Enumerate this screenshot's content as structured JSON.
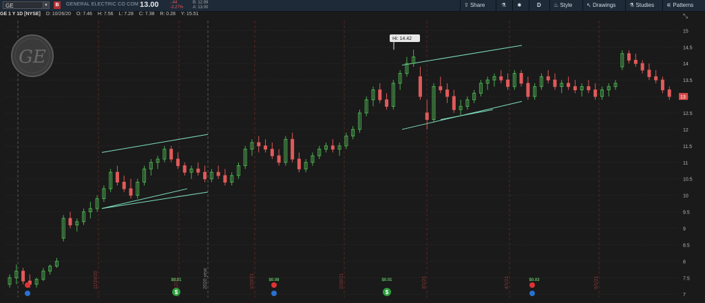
{
  "toolbar": {
    "symbol": "GE",
    "alert_label": "B",
    "company": "GENERAL ELECTRIC CO COM",
    "last_price": "13.00",
    "change": "-.44",
    "change_pct": "-3.27%",
    "bid": "B: 12.99",
    "ask": "A: 13.00",
    "share_label": "Share",
    "period_label": "D",
    "style_label": "Style",
    "drawings_label": "Drawings",
    "studies_label": "Studies",
    "patterns_label": "Patterns"
  },
  "infobar": {
    "title": "GE 1 Y 1D [NYSE]",
    "date": "D: 10/26/20",
    "open": "O: 7.46",
    "high": "H: 7.56",
    "low": "L: 7.28",
    "close": "C: 7.38",
    "range": "R: 0.28",
    "y": "Y: 15.51"
  },
  "colors": {
    "up": "#4caf50",
    "down": "#e05a5a",
    "trendline": "#7fe0c0",
    "background": "#1a1a1a",
    "toolbar": "#1e2a38"
  },
  "chart_data": {
    "type": "candlestick",
    "yticks": [
      "7",
      "7.5",
      "8",
      "8.5",
      "9",
      "9.5",
      "10",
      "10.5",
      "11",
      "11.5",
      "12",
      "12.5",
      "13",
      "13.5",
      "14",
      "14.5",
      "15"
    ],
    "ylim": [
      6.9,
      15.3
    ],
    "last_price_tag": "13",
    "hi_label": "Hi: 14.42",
    "x_labels": [
      "11/29/20",
      "12/31",
      "2020 year",
      "1/29/21",
      "2/26/21",
      "3/1/21",
      "4/1/21",
      "5/1/21"
    ],
    "dividends": [
      "$0.01",
      "$0.08",
      "$0.01",
      "$0.03"
    ],
    "candles": [
      [
        7.3,
        7.6,
        7.2,
        7.5
      ],
      [
        7.5,
        7.9,
        7.3,
        7.7
      ],
      [
        7.7,
        7.8,
        7.3,
        7.4
      ],
      [
        7.4,
        7.6,
        7.2,
        7.3
      ],
      [
        7.3,
        7.5,
        7.2,
        7.45
      ],
      [
        7.45,
        7.8,
        7.4,
        7.7
      ],
      [
        7.7,
        7.9,
        7.6,
        7.85
      ],
      [
        7.85,
        8.1,
        7.8,
        8.0
      ],
      [
        8.7,
        9.4,
        8.6,
        9.3
      ],
      [
        9.3,
        9.5,
        9.0,
        9.1
      ],
      [
        9.1,
        9.3,
        8.9,
        9.2
      ],
      [
        9.2,
        9.6,
        9.1,
        9.5
      ],
      [
        9.5,
        9.8,
        9.3,
        9.6
      ],
      [
        9.6,
        10.0,
        9.5,
        9.9
      ],
      [
        9.9,
        10.3,
        9.8,
        10.2
      ],
      [
        10.2,
        10.8,
        10.1,
        10.7
      ],
      [
        10.7,
        10.9,
        10.3,
        10.4
      ],
      [
        10.4,
        10.6,
        10.1,
        10.2
      ],
      [
        10.2,
        10.5,
        9.9,
        10.0
      ],
      [
        10.0,
        10.5,
        9.9,
        10.4
      ],
      [
        10.4,
        10.9,
        10.3,
        10.8
      ],
      [
        10.8,
        11.1,
        10.6,
        11.0
      ],
      [
        11.0,
        11.2,
        10.8,
        11.1
      ],
      [
        11.1,
        11.5,
        11.0,
        11.4
      ],
      [
        11.4,
        11.5,
        11.0,
        11.1
      ],
      [
        11.1,
        11.3,
        10.8,
        10.9
      ],
      [
        10.9,
        11.0,
        10.6,
        10.7
      ],
      [
        10.7,
        10.9,
        10.5,
        10.8
      ],
      [
        10.8,
        11.0,
        10.6,
        10.7
      ],
      [
        10.7,
        10.9,
        10.4,
        10.5
      ],
      [
        10.5,
        10.8,
        10.4,
        10.7
      ],
      [
        10.7,
        10.9,
        10.5,
        10.6
      ],
      [
        10.6,
        10.8,
        10.3,
        10.4
      ],
      [
        10.4,
        10.7,
        10.3,
        10.6
      ],
      [
        10.6,
        11.0,
        10.5,
        10.9
      ],
      [
        10.9,
        11.5,
        10.8,
        11.4
      ],
      [
        11.4,
        11.7,
        11.2,
        11.6
      ],
      [
        11.6,
        11.8,
        11.3,
        11.5
      ],
      [
        11.5,
        11.7,
        11.3,
        11.4
      ],
      [
        11.4,
        11.6,
        11.1,
        11.2
      ],
      [
        11.2,
        11.4,
        10.9,
        11.0
      ],
      [
        11.0,
        11.8,
        10.9,
        11.7
      ],
      [
        11.7,
        11.9,
        11.0,
        11.1
      ],
      [
        11.1,
        11.3,
        10.7,
        10.8
      ],
      [
        10.8,
        11.1,
        10.7,
        11.0
      ],
      [
        11.0,
        11.3,
        10.9,
        11.2
      ],
      [
        11.2,
        11.5,
        11.1,
        11.4
      ],
      [
        11.4,
        11.6,
        11.3,
        11.5
      ],
      [
        11.5,
        11.7,
        11.3,
        11.4
      ],
      [
        11.4,
        11.6,
        11.2,
        11.5
      ],
      [
        11.5,
        11.9,
        11.4,
        11.8
      ],
      [
        11.8,
        12.1,
        11.7,
        12.0
      ],
      [
        12.0,
        12.6,
        11.9,
        12.5
      ],
      [
        12.5,
        13.0,
        12.4,
        12.9
      ],
      [
        12.9,
        13.3,
        12.7,
        13.2
      ],
      [
        13.2,
        13.4,
        12.8,
        12.9
      ],
      [
        12.9,
        13.1,
        12.6,
        12.7
      ],
      [
        12.7,
        13.5,
        12.6,
        13.4
      ],
      [
        13.4,
        13.8,
        13.2,
        13.7
      ],
      [
        13.7,
        14.2,
        13.6,
        14.0
      ],
      [
        14.0,
        14.42,
        13.9,
        14.2
      ],
      [
        13.6,
        13.9,
        12.9,
        13.0
      ],
      [
        12.5,
        12.9,
        12.0,
        12.3
      ],
      [
        12.3,
        13.4,
        12.2,
        13.3
      ],
      [
        13.3,
        13.6,
        13.1,
        13.2
      ],
      [
        13.2,
        13.4,
        12.8,
        13.0
      ],
      [
        13.0,
        13.2,
        12.5,
        12.6
      ],
      [
        12.6,
        12.9,
        12.4,
        12.7
      ],
      [
        12.7,
        13.0,
        12.6,
        12.9
      ],
      [
        12.9,
        13.2,
        12.8,
        13.1
      ],
      [
        13.1,
        13.5,
        13.0,
        13.4
      ],
      [
        13.4,
        13.6,
        13.2,
        13.5
      ],
      [
        13.5,
        13.7,
        13.3,
        13.6
      ],
      [
        13.6,
        13.8,
        13.4,
        13.5
      ],
      [
        13.5,
        13.7,
        13.2,
        13.3
      ],
      [
        13.3,
        13.8,
        13.2,
        13.7
      ],
      [
        13.7,
        13.8,
        13.3,
        13.4
      ],
      [
        13.4,
        13.6,
        12.9,
        13.0
      ],
      [
        13.0,
        13.4,
        12.9,
        13.3
      ],
      [
        13.3,
        13.7,
        13.2,
        13.6
      ],
      [
        13.6,
        13.8,
        13.4,
        13.5
      ],
      [
        13.5,
        13.7,
        13.2,
        13.3
      ],
      [
        13.3,
        13.5,
        13.1,
        13.4
      ],
      [
        13.4,
        13.6,
        13.2,
        13.3
      ],
      [
        13.3,
        13.5,
        13.1,
        13.2
      ],
      [
        13.2,
        13.4,
        13.0,
        13.3
      ],
      [
        13.3,
        13.5,
        13.1,
        13.2
      ],
      [
        13.2,
        13.4,
        12.9,
        13.0
      ],
      [
        13.0,
        13.3,
        12.9,
        13.2
      ],
      [
        13.2,
        13.4,
        13.0,
        13.3
      ],
      [
        13.3,
        13.5,
        13.2,
        13.4
      ],
      [
        13.9,
        14.4,
        13.8,
        14.3
      ],
      [
        14.3,
        14.4,
        14.0,
        14.1
      ],
      [
        14.1,
        14.3,
        13.9,
        14.0
      ],
      [
        14.0,
        14.1,
        13.7,
        13.8
      ],
      [
        13.8,
        14.0,
        13.5,
        13.6
      ],
      [
        13.6,
        13.8,
        13.4,
        13.5
      ],
      [
        13.5,
        13.6,
        13.1,
        13.2
      ],
      [
        13.2,
        13.3,
        12.9,
        13.0
      ]
    ],
    "trendlines": [
      {
        "x0": 148,
        "y0": 11.3,
        "x1": 302,
        "y1": 11.85
      },
      {
        "x0": 148,
        "y0": 9.6,
        "x1": 302,
        "y1": 10.1
      },
      {
        "x0": 148,
        "y0": 9.6,
        "x1": 272,
        "y1": 10.2
      },
      {
        "x0": 584,
        "y0": 13.95,
        "x1": 758,
        "y1": 14.55
      },
      {
        "x0": 584,
        "y0": 12.0,
        "x1": 758,
        "y1": 12.85
      },
      {
        "x0": 640,
        "y0": 12.3,
        "x1": 716,
        "y1": 12.6
      }
    ]
  }
}
